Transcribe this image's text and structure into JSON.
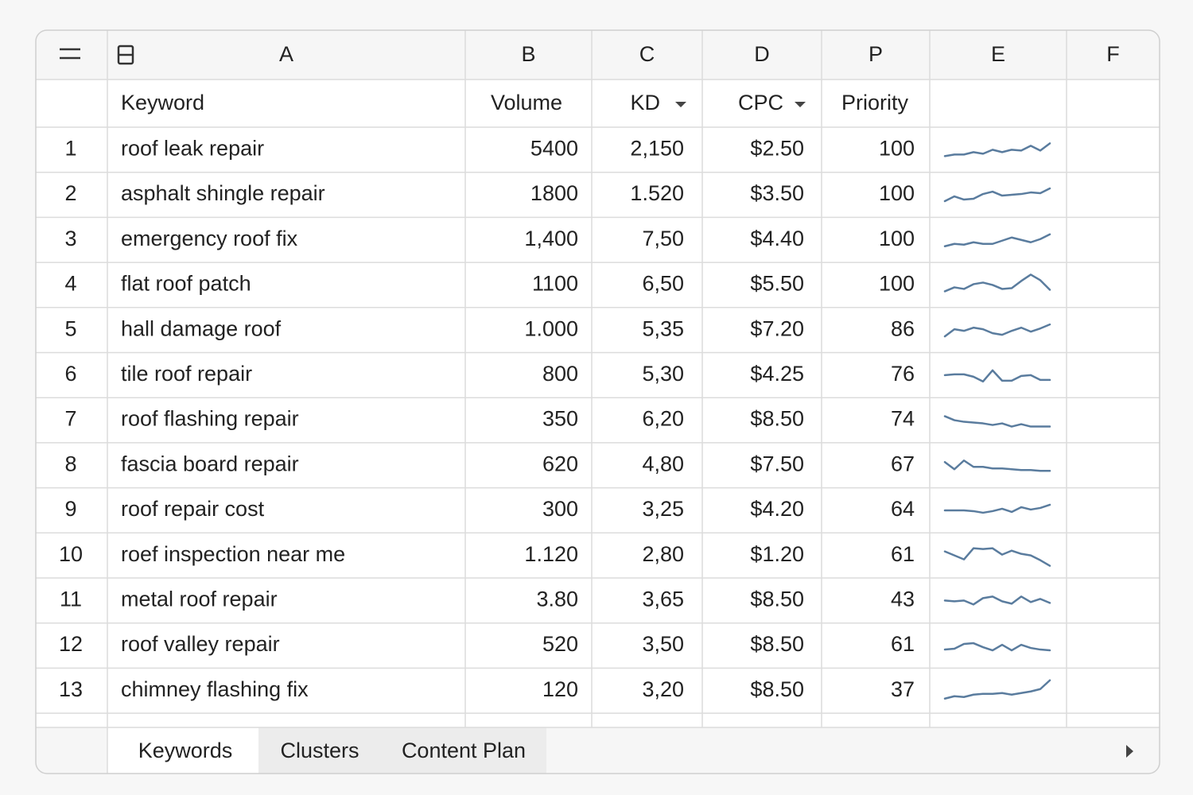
{
  "columns": [
    "A",
    "B",
    "C",
    "D",
    "P",
    "E",
    "F"
  ],
  "header": [
    "Keyword",
    "Volume",
    "KD",
    "CPC",
    "Priority"
  ],
  "rows": [
    [
      "1",
      "roof leak repair",
      "5400",
      "2,150",
      "$2.50",
      "100"
    ],
    [
      "2",
      "asphalt shingle repair",
      "1800",
      "1.520",
      "$3.50",
      "100"
    ],
    [
      "3",
      "emergency roof fix",
      "1,400",
      "7,50",
      "$4.40",
      "100"
    ],
    [
      "4",
      "flat roof patch",
      "1100",
      "6,50",
      "$5.50",
      "100"
    ],
    [
      "5",
      "hall damage roof",
      "1.000",
      "5,35",
      "$7.20",
      "86"
    ],
    [
      "6",
      "tile roof repair",
      "800",
      "5,30",
      "$4.25",
      "76"
    ],
    [
      "7",
      "roof flashing repair",
      "350",
      "6,20",
      "$8.50",
      "74"
    ],
    [
      "8",
      "fascia board repair",
      "620",
      "4,80",
      "$7.50",
      "67"
    ],
    [
      "9",
      "roof repair cost",
      "300",
      "3,25",
      "$4.20",
      "64"
    ],
    [
      "10",
      "roef inspection near me",
      "1.120",
      "2,80",
      "$1.20",
      "61"
    ],
    [
      "11",
      "metal roof repair",
      "3.80",
      "3,65",
      "$8.50",
      "43"
    ],
    [
      "12",
      "roof valley repair",
      "520",
      "3,50",
      "$8.50",
      "61"
    ],
    [
      "13",
      "chimney flashing fix",
      "120",
      "3,20",
      "$8.50",
      "37"
    ]
  ],
  "tabs": [
    "Keywords",
    "Clusters",
    "Content Plan"
  ]
}
